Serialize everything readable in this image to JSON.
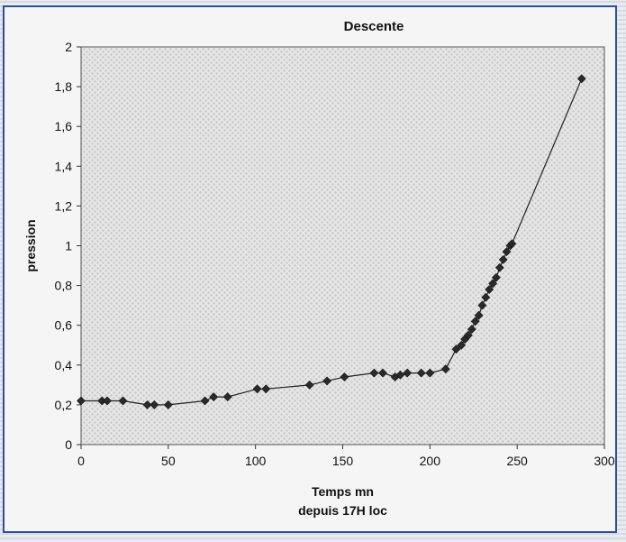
{
  "chart_data": {
    "type": "scatter",
    "title": "Descente",
    "xlabel_line1": "Temps mn",
    "xlabel_line2": "depuis 17H loc",
    "ylabel": "pression",
    "xlim": [
      0,
      300
    ],
    "ylim": [
      0,
      2
    ],
    "x_ticks": [
      "0",
      "50",
      "100",
      "150",
      "200",
      "250",
      "300"
    ],
    "y_ticks": [
      "0",
      "0,2",
      "0,4",
      "0,6",
      "0,8",
      "1",
      "1,2",
      "1,4",
      "1,6",
      "1,8",
      "2"
    ],
    "grid": false,
    "legend": "none",
    "marker": "diamond",
    "line_color": "#222222",
    "marker_color": "#2a2a2a",
    "series": [
      {
        "x": [
          0,
          12,
          15,
          24,
          38,
          42,
          50,
          71,
          76,
          84,
          101,
          106,
          131,
          141,
          151,
          168,
          173,
          180,
          183,
          187,
          195,
          200,
          209,
          215,
          218,
          220,
          222,
          224,
          226,
          228,
          230,
          232,
          234,
          236,
          238,
          240,
          242,
          244,
          246,
          247,
          287
        ],
        "y": [
          0.22,
          0.22,
          0.22,
          0.22,
          0.2,
          0.2,
          0.2,
          0.22,
          0.24,
          0.24,
          0.28,
          0.28,
          0.3,
          0.32,
          0.34,
          0.36,
          0.36,
          0.34,
          0.35,
          0.36,
          0.36,
          0.36,
          0.38,
          0.48,
          0.5,
          0.53,
          0.55,
          0.58,
          0.62,
          0.65,
          0.7,
          0.74,
          0.78,
          0.81,
          0.84,
          0.89,
          0.93,
          0.97,
          1.0,
          1.01,
          1.84
        ]
      }
    ]
  }
}
